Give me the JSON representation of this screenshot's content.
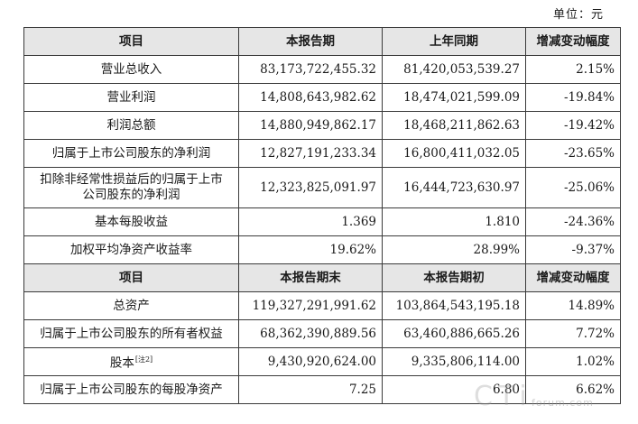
{
  "unit": "单位：元",
  "header1": {
    "item": "项目",
    "current": "本报告期",
    "previous": "上年同期",
    "change": "增减变动幅度"
  },
  "rows1": [
    {
      "label": "营业总收入",
      "current": "83,173,722,455.32",
      "previous": "81,420,053,539.27",
      "change": "2.15%"
    },
    {
      "label": "营业利润",
      "current": "14,808,643,982.62",
      "previous": "18,474,021,599.09",
      "change": "-19.84%"
    },
    {
      "label": "利润总额",
      "current": "14,880,949,862.17",
      "previous": "18,468,211,862.63",
      "change": "-19.42%"
    },
    {
      "label": "归属于上市公司股东的净利润",
      "current": "12,827,191,233.34",
      "previous": "16,800,411,032.05",
      "change": "-23.65%"
    },
    {
      "label_line1": "扣除非经常性损益后的归属于上市",
      "label_line2": "公司股东的净利润",
      "current": "12,323,825,091.97",
      "previous": "16,444,723,630.97",
      "change": "-25.06%"
    },
    {
      "label": "基本每股收益",
      "current": "1.369",
      "previous": "1.810",
      "change": "-24.36%"
    },
    {
      "label": "加权平均净资产收益率",
      "current": "19.62%",
      "previous": "28.99%",
      "change": "-9.37%"
    }
  ],
  "header2": {
    "item": "项目",
    "current": "本报告期末",
    "previous": "本报告期初",
    "change": "增减变动幅度"
  },
  "rows2": [
    {
      "label": "总资产",
      "current": "119,327,291,991.62",
      "previous": "103,864,543,195.18",
      "change": "14.89%"
    },
    {
      "label": "归属于上市公司股东的所有者权益",
      "current": "68,362,390,889.56",
      "previous": "63,460,886,665.26",
      "change": "7.72%"
    },
    {
      "label": "股本",
      "note": "[注2]",
      "current": "9,430,920,624.00",
      "previous": "9,335,806,114.00",
      "change": "1.02%"
    },
    {
      "label": "归属于上市公司股东的每股净资产",
      "current": "7.25",
      "previous": "6.80",
      "change": "6.62%"
    }
  ],
  "watermark": {
    "big": "CTi",
    "small": "forum.com"
  }
}
